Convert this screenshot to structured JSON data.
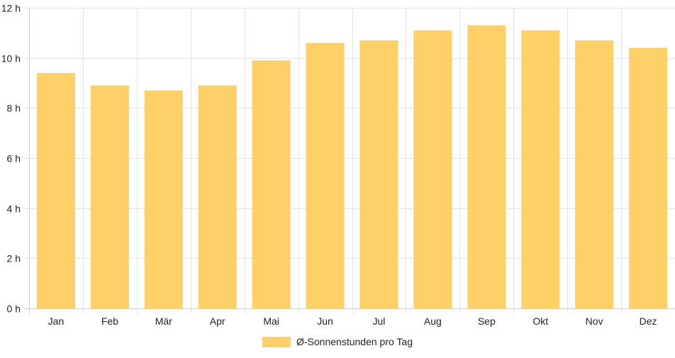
{
  "chart_data": {
    "type": "bar",
    "categories": [
      "Jan",
      "Feb",
      "Mär",
      "Apr",
      "Mai",
      "Jun",
      "Jul",
      "Aug",
      "Sep",
      "Okt",
      "Nov",
      "Dez"
    ],
    "series": [
      {
        "name": "Ø-Sonnenstunden pro Tag",
        "values": [
          9.4,
          8.9,
          8.7,
          8.9,
          9.9,
          10.6,
          10.7,
          11.1,
          11.3,
          11.1,
          10.7,
          10.4
        ],
        "color": "#fdd068"
      }
    ],
    "ylim": [
      0,
      12
    ],
    "y_ticks": [
      0,
      2,
      4,
      6,
      8,
      10,
      12
    ],
    "y_tick_suffix": " h",
    "grid": true,
    "legend_position": "bottom"
  }
}
